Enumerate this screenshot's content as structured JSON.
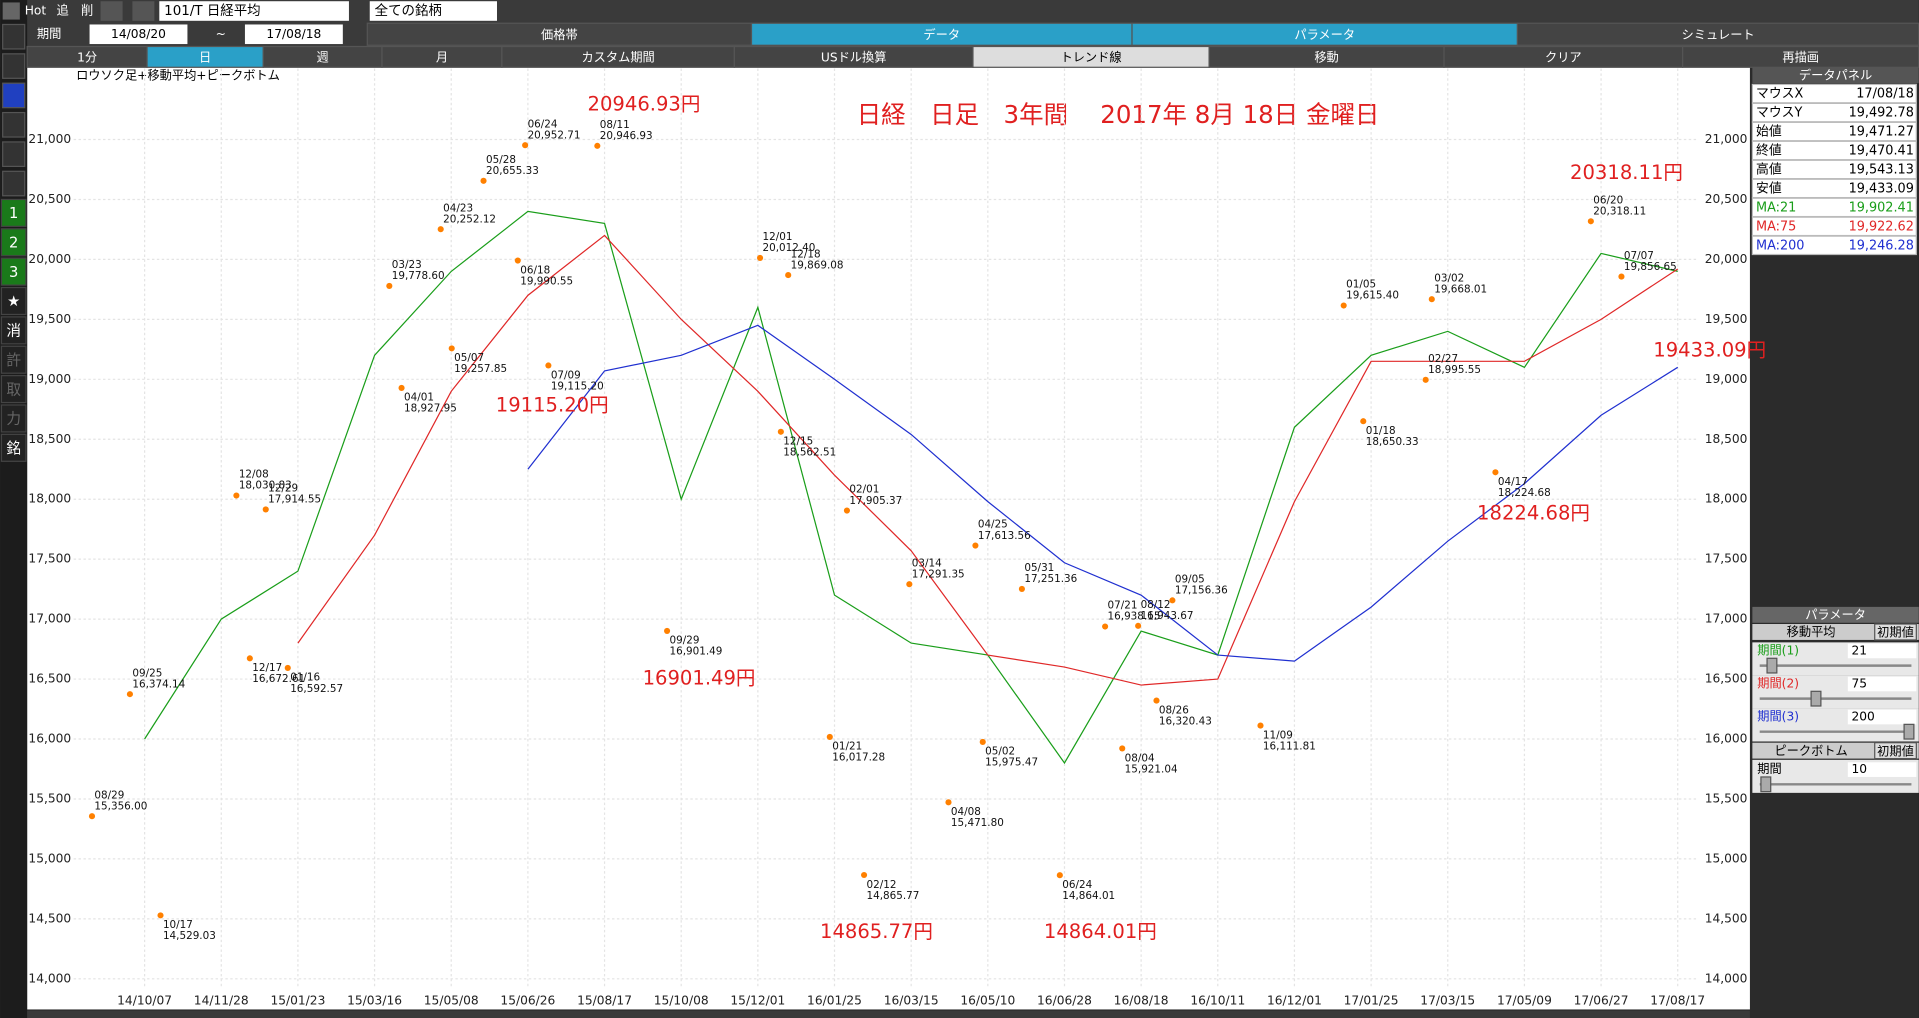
{
  "toolbar": {
    "hot": "Hot",
    "buttons": [
      "追",
      "削"
    ],
    "symbol": "101/T 日経平均",
    "universe": "全ての銘柄",
    "period_label": "期間",
    "start": "14/08/20",
    "tilde": "~",
    "end": "17/08/18",
    "tabs": [
      "価格帯",
      "データ",
      "パラメータ",
      "シミュレート"
    ],
    "period_buttons": [
      "1分",
      "日",
      "週",
      "月",
      "カスタム期間",
      "USドル換算",
      "トレンド線",
      "移動",
      "クリア",
      "再描画"
    ]
  },
  "sidebar": [
    "1",
    "2",
    "3",
    "★",
    "消",
    "許",
    "取",
    "力",
    "銘"
  ],
  "data_panel": {
    "title": "データパネル",
    "rows": [
      {
        "label": "マウスX",
        "value": "17/08/18"
      },
      {
        "label": "マウスY",
        "value": "19,492.78"
      },
      {
        "label": "始値",
        "value": "19,471.27"
      },
      {
        "label": "終値",
        "value": "19,470.41"
      },
      {
        "label": "高値",
        "value": "19,543.13"
      },
      {
        "label": "安値",
        "value": "19,433.09"
      },
      {
        "label": "MA:21",
        "value": "19,902.41"
      },
      {
        "label": "MA:75",
        "value": "19,922.62"
      },
      {
        "label": "MA:200",
        "value": "19,246.28"
      }
    ]
  },
  "param_panel": {
    "title": "パラメータ",
    "ma_title": "移動平均",
    "reset": "初期値",
    "params": [
      {
        "label": "期間(1)",
        "value": "21"
      },
      {
        "label": "期間(2)",
        "value": "75"
      },
      {
        "label": "期間(3)",
        "value": "200"
      }
    ],
    "pb_title": "ピークボトム",
    "pb_reset": "初期値",
    "pb_param": {
      "label": "期間",
      "value": "10"
    }
  },
  "chart_data": {
    "type": "line",
    "subtitle": "ロウソク足+移動平均+ピークボトム",
    "title": "日経　日足　3年間　 2017年 8月 18日 金曜日",
    "categories": [
      "14/10/07",
      "14/11/28",
      "15/01/23",
      "15/03/16",
      "15/05/08",
      "15/06/26",
      "15/08/17",
      "15/10/08",
      "15/12/01",
      "16/01/25",
      "16/03/15",
      "16/05/10",
      "16/06/28",
      "16/08/18",
      "16/10/11",
      "16/12/01",
      "17/01/25",
      "17/03/15",
      "17/05/09",
      "17/06/27",
      "17/08/17"
    ],
    "series": [
      {
        "name": "MA:21",
        "color": "#1a9e1a",
        "values": [
          16000,
          17000,
          17400,
          19200,
          19900,
          20400,
          20300,
          18000,
          19600,
          17200,
          16800,
          16700,
          15800,
          16900,
          16700,
          18600,
          19200,
          19400,
          19100,
          20050,
          19900
        ]
      },
      {
        "name": "MA:75",
        "color": "#e02828",
        "values": [
          null,
          null,
          16800,
          17700,
          18900,
          19700,
          20200,
          19500,
          18900,
          18200,
          17570,
          16700,
          16600,
          16450,
          16500,
          17980,
          19150,
          19150,
          19150,
          19500,
          19920
        ]
      },
      {
        "name": "MA:200",
        "color": "#2030d0",
        "values": [
          null,
          null,
          null,
          null,
          null,
          18250,
          19070,
          19200,
          19450,
          19000,
          18540,
          17980,
          17470,
          17200,
          16700,
          16650,
          17100,
          17650,
          18130,
          18700,
          19100
        ]
      }
    ],
    "ylim": [
      13816,
      21592
    ],
    "yticks": [
      {
        "value": 14000,
        "label": "14,000"
      },
      {
        "value": 14500,
        "label": "14,500"
      },
      {
        "value": 15000,
        "label": "15,000"
      },
      {
        "value": 15500,
        "label": "15,500"
      },
      {
        "value": 16000,
        "label": "16,000"
      },
      {
        "value": 16500,
        "label": "16,500"
      },
      {
        "value": 17000,
        "label": "17,000"
      },
      {
        "value": 17500,
        "label": "17,500"
      },
      {
        "value": 18000,
        "label": "18,000"
      },
      {
        "value": 18500,
        "label": "18,500"
      },
      {
        "value": 19000,
        "label": "19,000"
      },
      {
        "value": 19500,
        "label": "19,500"
      },
      {
        "value": 20000,
        "label": "20,000"
      },
      {
        "value": 20500,
        "label": "20,500"
      },
      {
        "value": 21000,
        "label": "21,000"
      }
    ],
    "grid": true,
    "peaks": {
      "dates": [
        "08/29",
        "09/25",
        "10/17",
        "12/08",
        "12/17",
        "12/29",
        "01/16",
        "03/23",
        "04/01",
        "04/23",
        "05/07",
        "05/28",
        "06/18",
        "06/24",
        "07/09",
        "08/11",
        "09/29",
        "12/01",
        "12/15",
        "12/18",
        "01/21",
        "02/01",
        "02/12",
        "03/14",
        "04/08",
        "04/25",
        "05/02",
        "05/31",
        "06/24",
        "07/21",
        "08/04",
        "08/12",
        "08/26",
        "09/05",
        "11/09",
        "01/05",
        "01/18",
        "02/27",
        "03/02",
        "04/17",
        "06/20",
        "07/07"
      ],
      "values": [
        15356.0,
        16374.14,
        14529.03,
        18030.83,
        16672.61,
        17914.55,
        16592.57,
        19778.6,
        18927.95,
        20252.12,
        19257.85,
        20655.33,
        19990.55,
        20952.71,
        19115.2,
        20946.93,
        16901.49,
        20012.4,
        18562.51,
        19869.08,
        16017.28,
        17905.37,
        14865.77,
        17291.35,
        15471.8,
        17613.56,
        15975.47,
        17251.36,
        14864.01,
        16938.15,
        15921.04,
        16943.67,
        16320.43,
        17156.36,
        16111.81,
        19615.4,
        18650.33,
        18995.55,
        19668.01,
        18224.68,
        20318.11,
        19856.65
      ],
      "value_labels": [
        "15,356.00",
        "16,374.14",
        "14,529.03",
        "18,030.83",
        "16,672.61",
        "17,914.55",
        "16,592.57",
        "19,778.60",
        "18,927.95",
        "20,252.12",
        "19,257.85",
        "20,655.33",
        "19,990.55",
        "20,952.71",
        "19,115.20",
        "20,946.93",
        "16,901.49",
        "20,012.40",
        "18,562.51",
        "19,869.08",
        "16,017.28",
        "17,905.37",
        "14,865.77",
        "17,291.35",
        "15,471.80",
        "17,613.56",
        "15,975.47",
        "17,251.36",
        "14,864.01",
        "16,938.15",
        "15,921.04",
        "16,943.67",
        "16,320.43",
        "17,156.36",
        "16,111.81",
        "19,615.40",
        "18,650.33",
        "18,995.55",
        "19,668.01",
        "18,224.68",
        "20,318.11",
        "19,856.65"
      ]
    },
    "annotations": [
      "20946.93円",
      "19115.20円",
      "16901.49円",
      "14865.77円",
      "14864.01円",
      "18224.68円",
      "20318.11円",
      "19433.09円"
    ]
  }
}
